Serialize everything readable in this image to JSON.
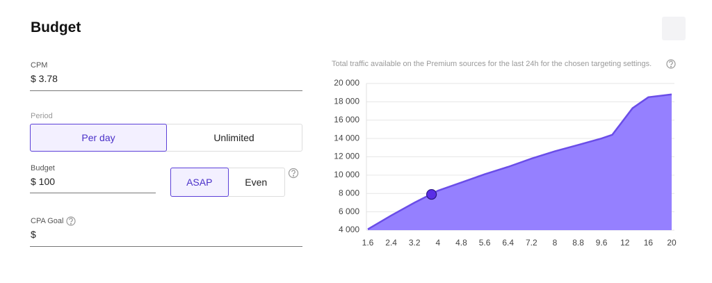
{
  "header": {
    "title": "Budget"
  },
  "form": {
    "cpm": {
      "label": "CPM",
      "value": "$ 3.78"
    },
    "period": {
      "label": "Period",
      "options": [
        "Per day",
        "Unlimited"
      ],
      "selected": 0
    },
    "budget": {
      "label": "Budget",
      "value": "$ 100",
      "options": [
        "ASAP",
        "Even"
      ],
      "selected": 0
    },
    "cpa_goal": {
      "label": "CPA Goal",
      "value": "$"
    }
  },
  "chart_data": {
    "type": "area",
    "subtitle": "Total traffic available on the Premium sources for the last 24h for the chosen targeting settings.",
    "x": [
      1.6,
      2.4,
      3.2,
      4,
      4.8,
      5.6,
      6.4,
      7.2,
      8,
      8.8,
      9.6,
      10.7,
      13.3,
      16,
      20
    ],
    "values": [
      4100,
      5600,
      7000,
      8300,
      9200,
      10100,
      10900,
      11800,
      12600,
      13300,
      14000,
      14400,
      17300,
      18500,
      18800
    ],
    "marker": {
      "x": 3.78,
      "value": 7900,
      "color": "#5a2ee6"
    },
    "color": "#9580ff",
    "line_color": "#6a4de8",
    "xlim": [
      1.6,
      20
    ],
    "xticks": [
      1.6,
      2.4,
      3.2,
      4,
      4.8,
      5.6,
      6.4,
      7.2,
      8,
      8.8,
      9.6,
      12,
      16,
      20
    ],
    "ylim": [
      4000,
      20000
    ],
    "yticks": [
      {
        "value": 4000,
        "label": "4 000"
      },
      {
        "value": 6000,
        "label": "6 000"
      },
      {
        "value": 8000,
        "label": "8 000"
      },
      {
        "value": 10000,
        "label": "10 000"
      },
      {
        "value": 12000,
        "label": "12 000"
      },
      {
        "value": 14000,
        "label": "14 000"
      },
      {
        "value": 16000,
        "label": "16 000"
      },
      {
        "value": 18000,
        "label": "18 000"
      },
      {
        "value": 20000,
        "label": "20 000"
      }
    ],
    "grid": true
  }
}
